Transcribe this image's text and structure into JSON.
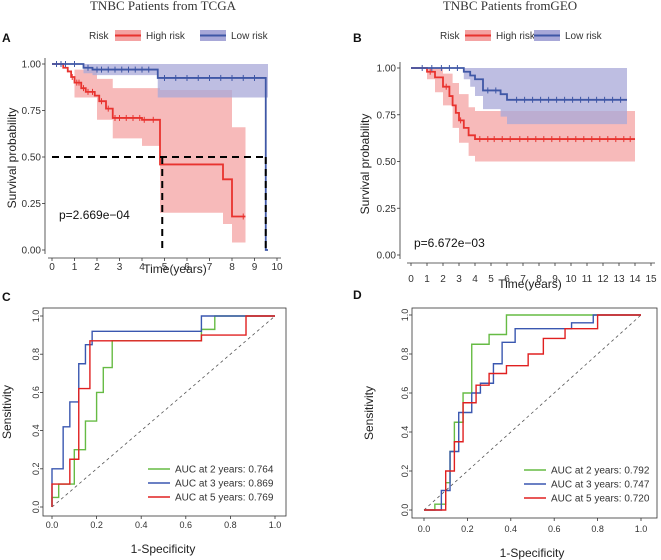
{
  "chart_data": [
    {
      "panel": "A",
      "type": "line",
      "kind": "kaplan-meier",
      "title": "TNBC Patients from TCGA",
      "xlabel": "Time(years)",
      "ylabel": "Survival probability",
      "xlim": [
        0,
        10
      ],
      "ylim": [
        0,
        1
      ],
      "xticks": [
        0,
        1,
        2,
        3,
        4,
        5,
        6,
        7,
        8,
        9,
        10
      ],
      "yticks": [
        "0.00",
        "0.25",
        "0.50",
        "0.75",
        "1.00"
      ],
      "legend": {
        "title": "Risk",
        "entries": [
          "High risk",
          "Low risk"
        ],
        "position": "top"
      },
      "pvalue": "p=2.669e−04",
      "median_lines": {
        "y": 0.5,
        "x": [
          4.9,
          9.5
        ]
      },
      "series": [
        {
          "name": "High risk",
          "color": "#e8332f",
          "steps": [
            [
              0,
              1
            ],
            [
              0.5,
              0.98
            ],
            [
              0.7,
              0.96
            ],
            [
              0.85,
              0.93
            ],
            [
              1.0,
              0.9
            ],
            [
              1.3,
              0.87
            ],
            [
              1.5,
              0.85
            ],
            [
              1.9,
              0.83
            ],
            [
              2.1,
              0.8
            ],
            [
              2.4,
              0.76
            ],
            [
              2.7,
              0.71
            ],
            [
              4.0,
              0.7
            ],
            [
              4.8,
              0.46
            ],
            [
              7.5,
              0.46
            ],
            [
              7.6,
              0.38
            ],
            [
              8.0,
              0.18
            ],
            [
              8.6,
              0.18
            ]
          ],
          "ci_upper": [
            [
              0,
              1
            ],
            [
              1.0,
              0.97
            ],
            [
              2.0,
              0.92
            ],
            [
              2.7,
              0.87
            ],
            [
              4.8,
              0.86
            ],
            [
              5.3,
              0.86
            ],
            [
              7.6,
              0.86
            ],
            [
              8.0,
              0.66
            ],
            [
              8.6,
              0.66
            ]
          ],
          "ci_lower": [
            [
              0,
              1
            ],
            [
              1.0,
              0.82
            ],
            [
              2.0,
              0.7
            ],
            [
              2.7,
              0.6
            ],
            [
              4.0,
              0.56
            ],
            [
              4.8,
              0.2
            ],
            [
              7.6,
              0.14
            ],
            [
              8.0,
              0.04
            ],
            [
              8.6,
              0.04
            ]
          ],
          "censor_x": [
            0.9,
            1.1,
            1.2,
            1.4,
            1.6,
            1.8,
            2.2,
            2.5,
            2.8,
            3.0,
            3.3,
            3.6,
            3.9,
            4.1,
            4.5,
            8.5
          ]
        },
        {
          "name": "Low risk",
          "color": "#3f57a6",
          "steps": [
            [
              0,
              1
            ],
            [
              1.4,
              0.98
            ],
            [
              1.8,
              0.97
            ],
            [
              4.7,
              0.925
            ],
            [
              9.5,
              0.0
            ],
            [
              9.6,
              0.0
            ]
          ],
          "ci_upper": [
            [
              0,
              1
            ],
            [
              9.6,
              1
            ]
          ],
          "ci_lower": [
            [
              0,
              1
            ],
            [
              1.4,
              0.95
            ],
            [
              1.8,
              0.94
            ],
            [
              4.7,
              0.82
            ],
            [
              9.6,
              0.82
            ]
          ],
          "censor_x": [
            0.2,
            0.4,
            0.6,
            1.0,
            1.6,
            2.0,
            2.2,
            2.5,
            2.8,
            3.1,
            3.4,
            3.7,
            4.0,
            4.3,
            5.0,
            5.5,
            6.0,
            6.5,
            7.0,
            7.5,
            8.0,
            8.5,
            9.0
          ]
        }
      ]
    },
    {
      "panel": "B",
      "type": "line",
      "kind": "kaplan-meier",
      "title": "TNBC Patients fromGEO",
      "xlabel": "Time(years)",
      "ylabel": "Survival probability",
      "xlim": [
        0,
        15
      ],
      "ylim": [
        0,
        1
      ],
      "xticks": [
        0,
        1,
        2,
        3,
        4,
        5,
        6,
        7,
        8,
        9,
        10,
        11,
        12,
        13,
        14,
        15
      ],
      "yticks": [
        "0.00",
        "0.25",
        "0.50",
        "0.75",
        "1.00"
      ],
      "legend": {
        "title": "Risk",
        "entries": [
          "High risk",
          "Low risk"
        ],
        "position": "top"
      },
      "pvalue": "p=6.672e−03",
      "series": [
        {
          "name": "High risk",
          "color": "#e8332f",
          "steps": [
            [
              0,
              1
            ],
            [
              1.0,
              0.98
            ],
            [
              1.5,
              0.95
            ],
            [
              2.0,
              0.9
            ],
            [
              2.4,
              0.85
            ],
            [
              2.6,
              0.8
            ],
            [
              2.8,
              0.76
            ],
            [
              3.0,
              0.72
            ],
            [
              3.3,
              0.68
            ],
            [
              3.6,
              0.64
            ],
            [
              4.0,
              0.62
            ],
            [
              14.0,
              0.62
            ]
          ],
          "ci_upper": [
            [
              0,
              1
            ],
            [
              1.5,
              1.0
            ],
            [
              2.0,
              0.97
            ],
            [
              2.6,
              0.92
            ],
            [
              3.0,
              0.86
            ],
            [
              3.6,
              0.79
            ],
            [
              4.0,
              0.77
            ],
            [
              14.0,
              0.77
            ]
          ],
          "ci_lower": [
            [
              0,
              1
            ],
            [
              1.0,
              0.94
            ],
            [
              1.5,
              0.87
            ],
            [
              2.0,
              0.8
            ],
            [
              2.6,
              0.68
            ],
            [
              3.0,
              0.6
            ],
            [
              3.6,
              0.53
            ],
            [
              4.0,
              0.5
            ],
            [
              14.0,
              0.5
            ]
          ],
          "censor_x": [
            1.2,
            2.2,
            3.1,
            4.3,
            4.8,
            5.2,
            5.7,
            6.2,
            6.8,
            7.3,
            7.8,
            8.3,
            8.8,
            9.3,
            9.8,
            10.3,
            10.8,
            11.3,
            11.8,
            12.3,
            12.8,
            13.3,
            13.7
          ]
        },
        {
          "name": "Low risk",
          "color": "#3f57a6",
          "steps": [
            [
              0,
              1
            ],
            [
              3.3,
              0.98
            ],
            [
              3.7,
              0.96
            ],
            [
              4.0,
              0.94
            ],
            [
              4.5,
              0.88
            ],
            [
              5.6,
              0.86
            ],
            [
              6.0,
              0.83
            ],
            [
              13.5,
              0.83
            ]
          ],
          "ci_upper": [
            [
              0,
              1
            ],
            [
              13.5,
              1
            ]
          ],
          "ci_lower": [
            [
              0,
              1
            ],
            [
              3.3,
              0.94
            ],
            [
              3.7,
              0.9
            ],
            [
              4.0,
              0.85
            ],
            [
              4.5,
              0.78
            ],
            [
              5.6,
              0.74
            ],
            [
              6.0,
              0.7
            ],
            [
              13.5,
              0.7
            ]
          ],
          "censor_x": [
            0.7,
            1.3,
            1.9,
            2.4,
            2.9,
            4.8,
            5.3,
            6.6,
            7.1,
            7.6,
            8.1,
            8.6,
            9.1,
            9.6,
            10.1,
            10.6,
            11.1,
            11.6,
            12.1,
            12.6,
            13.1
          ]
        }
      ]
    },
    {
      "panel": "C",
      "type": "line",
      "kind": "roc",
      "xlabel": "1-Specificity",
      "ylabel": "Sensitivity",
      "xlim": [
        0,
        1
      ],
      "ylim": [
        0,
        1
      ],
      "xticks": [
        "0.0",
        "0.2",
        "0.4",
        "0.6",
        "0.8",
        "1.0"
      ],
      "yticks": [
        "0.0",
        "0.2",
        "0.4",
        "0.6",
        "0.8",
        "1.0"
      ],
      "legend": {
        "position": "bottom-right"
      },
      "series": [
        {
          "name": "AUC at 2 years: 0.764",
          "color": "#66bb44",
          "points": [
            [
              0,
              0
            ],
            [
              0,
              0.05
            ],
            [
              0.03,
              0.05
            ],
            [
              0.03,
              0.12
            ],
            [
              0.1,
              0.12
            ],
            [
              0.1,
              0.3
            ],
            [
              0.15,
              0.3
            ],
            [
              0.15,
              0.45
            ],
            [
              0.2,
              0.45
            ],
            [
              0.2,
              0.6
            ],
            [
              0.23,
              0.6
            ],
            [
              0.23,
              0.73
            ],
            [
              0.27,
              0.73
            ],
            [
              0.27,
              0.87
            ],
            [
              0.67,
              0.87
            ],
            [
              0.67,
              0.93
            ],
            [
              0.73,
              0.93
            ],
            [
              0.73,
              1.0
            ],
            [
              1,
              1
            ]
          ]
        },
        {
          "name": "AUC at 3 years: 0.869",
          "color": "#3a57b0",
          "points": [
            [
              0,
              0
            ],
            [
              0,
              0.2
            ],
            [
              0.05,
              0.2
            ],
            [
              0.05,
              0.42
            ],
            [
              0.08,
              0.42
            ],
            [
              0.08,
              0.55
            ],
            [
              0.12,
              0.55
            ],
            [
              0.12,
              0.75
            ],
            [
              0.15,
              0.75
            ],
            [
              0.15,
              0.85
            ],
            [
              0.18,
              0.85
            ],
            [
              0.18,
              0.92
            ],
            [
              0.67,
              0.92
            ],
            [
              0.67,
              1.0
            ],
            [
              1,
              1
            ]
          ]
        },
        {
          "name": "AUC at 5 years: 0.769",
          "color": "#e02020",
          "points": [
            [
              0,
              0
            ],
            [
              0,
              0.12
            ],
            [
              0.08,
              0.12
            ],
            [
              0.08,
              0.25
            ],
            [
              0.12,
              0.25
            ],
            [
              0.12,
              0.62
            ],
            [
              0.17,
              0.62
            ],
            [
              0.17,
              0.87
            ],
            [
              0.67,
              0.87
            ],
            [
              0.67,
              0.9
            ],
            [
              0.87,
              0.9
            ],
            [
              0.87,
              1.0
            ],
            [
              1,
              1
            ]
          ]
        }
      ]
    },
    {
      "panel": "D",
      "type": "line",
      "kind": "roc",
      "xlabel": "1-Specificity",
      "ylabel": "Sensitivity",
      "xlim": [
        0,
        1
      ],
      "ylim": [
        0,
        1
      ],
      "xticks": [
        "0.0",
        "0.2",
        "0.4",
        "0.6",
        "0.8",
        "1.0"
      ],
      "yticks": [
        "0.0",
        "0.2",
        "0.4",
        "0.6",
        "0.8",
        "1.0"
      ],
      "legend": {
        "position": "bottom-right"
      },
      "series": [
        {
          "name": "AUC at 2 years: 0.792",
          "color": "#66bb44",
          "points": [
            [
              0,
              0
            ],
            [
              0.05,
              0
            ],
            [
              0.05,
              0.03
            ],
            [
              0.1,
              0.03
            ],
            [
              0.1,
              0.14
            ],
            [
              0.12,
              0.14
            ],
            [
              0.12,
              0.3
            ],
            [
              0.14,
              0.3
            ],
            [
              0.14,
              0.45
            ],
            [
              0.18,
              0.45
            ],
            [
              0.18,
              0.6
            ],
            [
              0.22,
              0.6
            ],
            [
              0.22,
              0.85
            ],
            [
              0.3,
              0.85
            ],
            [
              0.3,
              0.9
            ],
            [
              0.38,
              0.9
            ],
            [
              0.38,
              1.0
            ],
            [
              1,
              1
            ]
          ]
        },
        {
          "name": "AUC at 3 years: 0.747",
          "color": "#3a57b0",
          "points": [
            [
              0,
              0
            ],
            [
              0.08,
              0
            ],
            [
              0.08,
              0.1
            ],
            [
              0.12,
              0.1
            ],
            [
              0.12,
              0.3
            ],
            [
              0.16,
              0.3
            ],
            [
              0.16,
              0.5
            ],
            [
              0.22,
              0.5
            ],
            [
              0.22,
              0.6
            ],
            [
              0.26,
              0.6
            ],
            [
              0.26,
              0.65
            ],
            [
              0.32,
              0.65
            ],
            [
              0.32,
              0.75
            ],
            [
              0.36,
              0.75
            ],
            [
              0.36,
              0.86
            ],
            [
              0.42,
              0.86
            ],
            [
              0.42,
              0.93
            ],
            [
              0.68,
              0.93
            ],
            [
              0.68,
              0.96
            ],
            [
              0.78,
              0.96
            ],
            [
              0.78,
              1.0
            ],
            [
              1,
              1
            ]
          ]
        },
        {
          "name": "AUC at 5 years: 0.720",
          "color": "#e02020",
          "points": [
            [
              0,
              0
            ],
            [
              0.1,
              0
            ],
            [
              0.1,
              0.2
            ],
            [
              0.14,
              0.2
            ],
            [
              0.14,
              0.35
            ],
            [
              0.18,
              0.35
            ],
            [
              0.18,
              0.55
            ],
            [
              0.24,
              0.55
            ],
            [
              0.24,
              0.64
            ],
            [
              0.3,
              0.64
            ],
            [
              0.3,
              0.7
            ],
            [
              0.38,
              0.7
            ],
            [
              0.38,
              0.74
            ],
            [
              0.48,
              0.74
            ],
            [
              0.48,
              0.8
            ],
            [
              0.55,
              0.8
            ],
            [
              0.55,
              0.88
            ],
            [
              0.65,
              0.88
            ],
            [
              0.65,
              0.93
            ],
            [
              0.8,
              0.93
            ],
            [
              0.8,
              1.0
            ],
            [
              1,
              1
            ]
          ]
        }
      ]
    }
  ]
}
